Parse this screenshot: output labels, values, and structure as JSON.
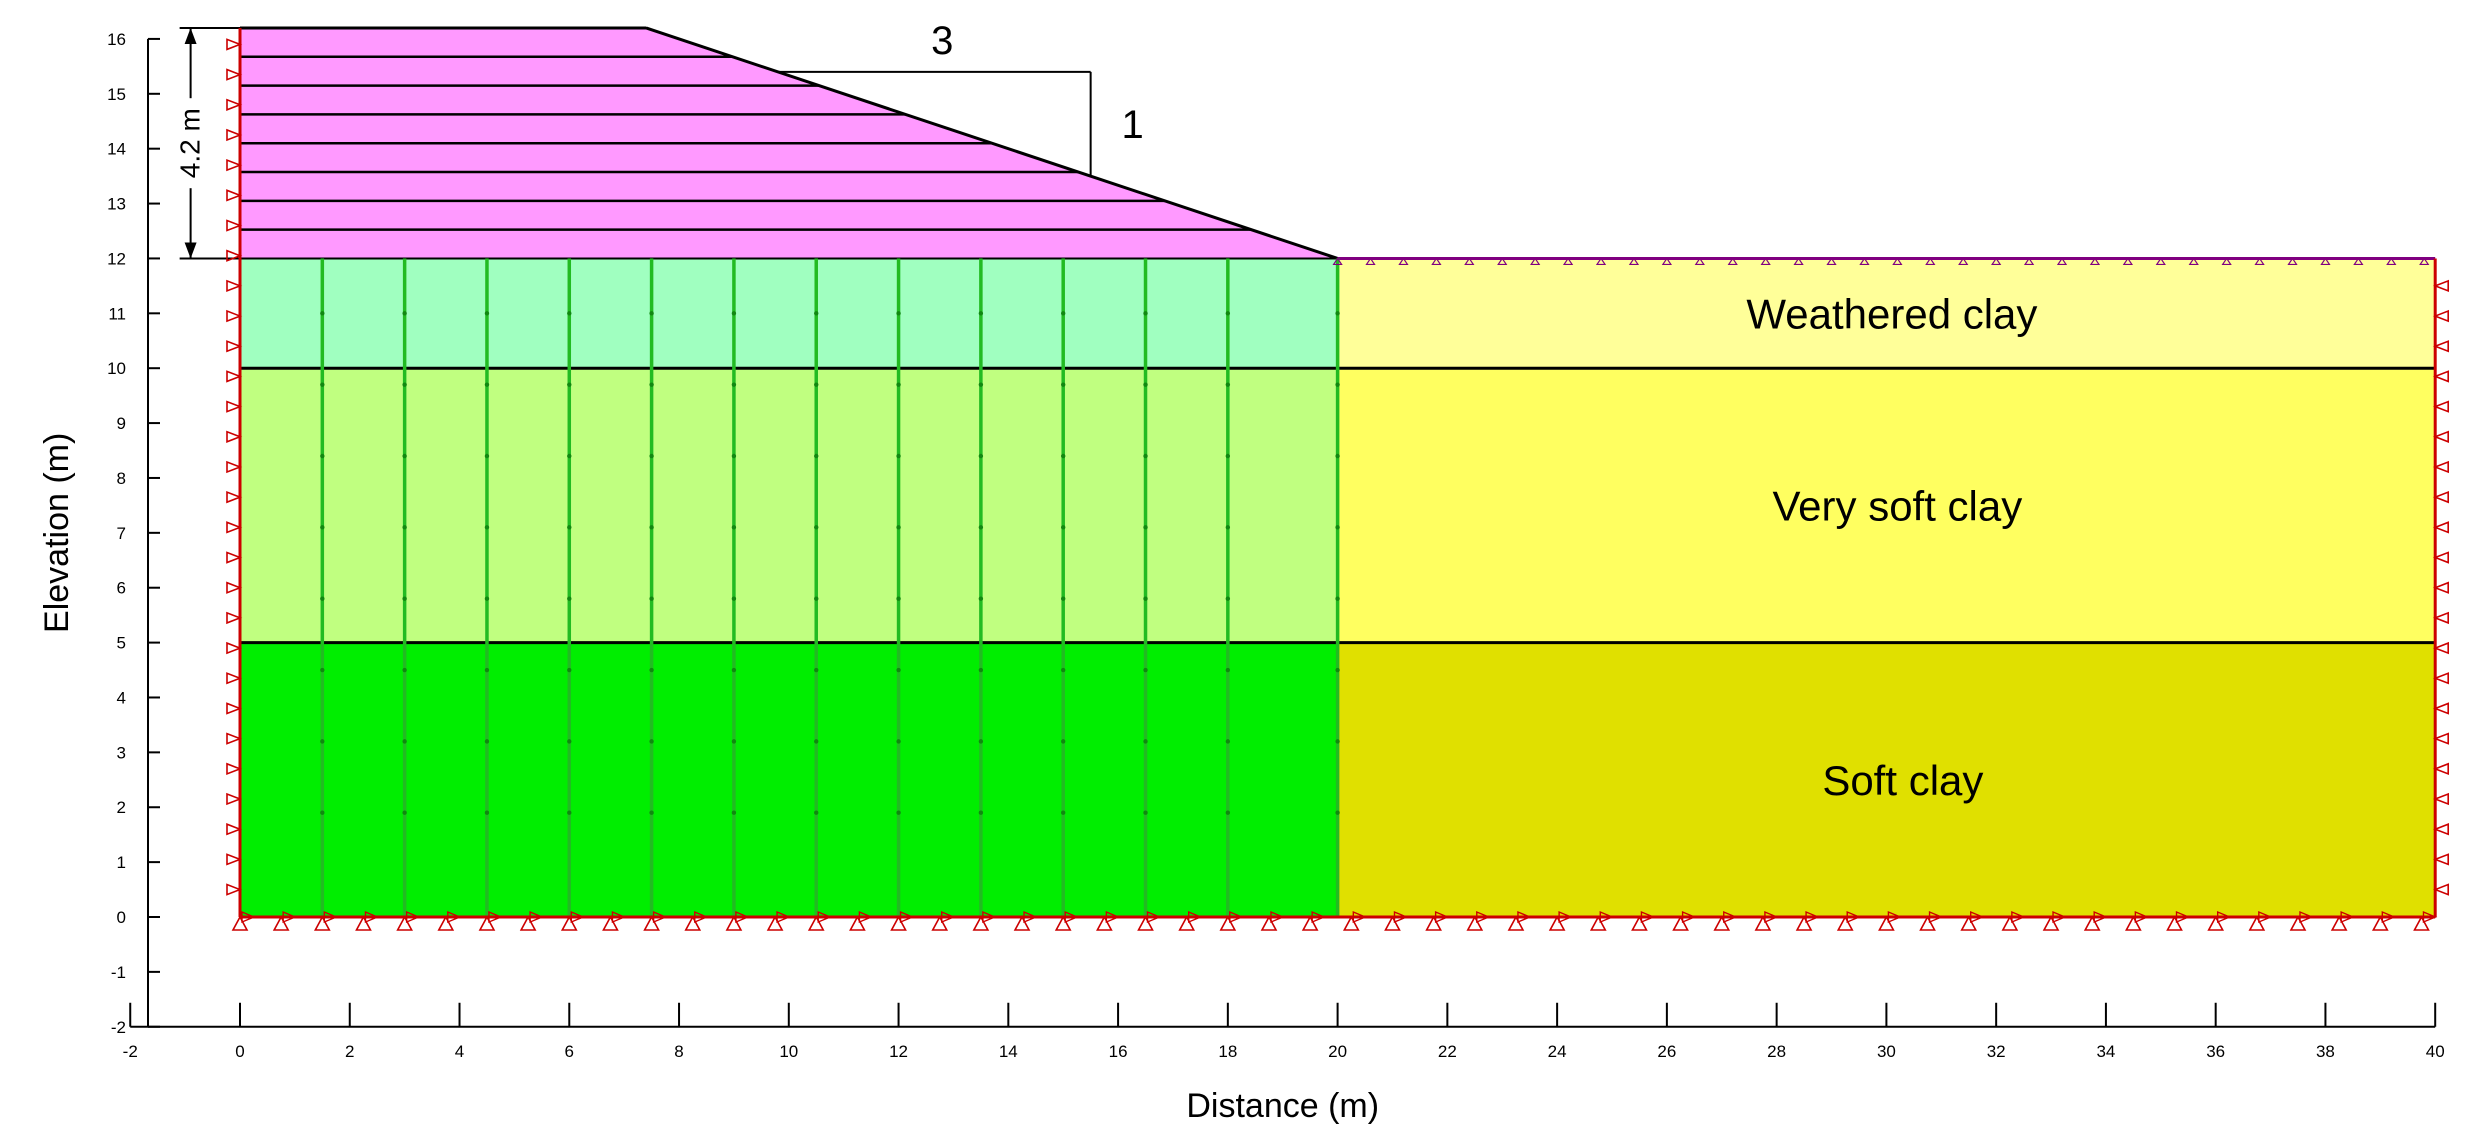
{
  "diagram": {
    "x_axis": {
      "label": "Distance (m)",
      "range": [
        -2,
        40
      ],
      "ticks": [
        -2,
        0,
        2,
        4,
        6,
        8,
        10,
        12,
        14,
        16,
        18,
        20,
        22,
        24,
        26,
        28,
        30,
        32,
        34,
        36,
        38,
        40
      ]
    },
    "y_axis": {
      "label": "Elevation (m)",
      "range": [
        -2,
        16
      ],
      "ticks": [
        -2,
        -1,
        0,
        1,
        2,
        3,
        4,
        5,
        6,
        7,
        8,
        9,
        10,
        11,
        12,
        13,
        14,
        15,
        16
      ]
    },
    "embankment": {
      "crest_x": [
        0,
        7.4
      ],
      "toe_x": 20,
      "base_elevation": 12,
      "top_elevation": 16.2,
      "lift_count": 8,
      "height_label": "4.2 m",
      "slope_horizontal": "3",
      "slope_vertical": "1",
      "color": "#ff99ff"
    },
    "layers": [
      {
        "name": "weathered",
        "label": "Weathered clay",
        "top": 12,
        "bottom": 10,
        "treated_color": "#a0ffc0",
        "untreated_color": "#ffff99"
      },
      {
        "name": "very-soft",
        "label": "Very soft clay",
        "top": 10,
        "bottom": 5,
        "treated_color": "#c0ff80",
        "untreated_color": "#ffff60"
      },
      {
        "name": "soft",
        "label": "Soft clay",
        "top": 5,
        "bottom": 0,
        "treated_color": "#00ee00",
        "untreated_color": "#e0e000"
      }
    ],
    "treated_zone_x": [
      0,
      20
    ],
    "drain_x": [
      1.5,
      3,
      4.5,
      6,
      7.5,
      9,
      10.5,
      12,
      13.5,
      15,
      16.5,
      18,
      20
    ],
    "colors": {
      "boundary": "#cc0000",
      "drain": "#22bb22",
      "embankment_edge": "#800080"
    }
  }
}
